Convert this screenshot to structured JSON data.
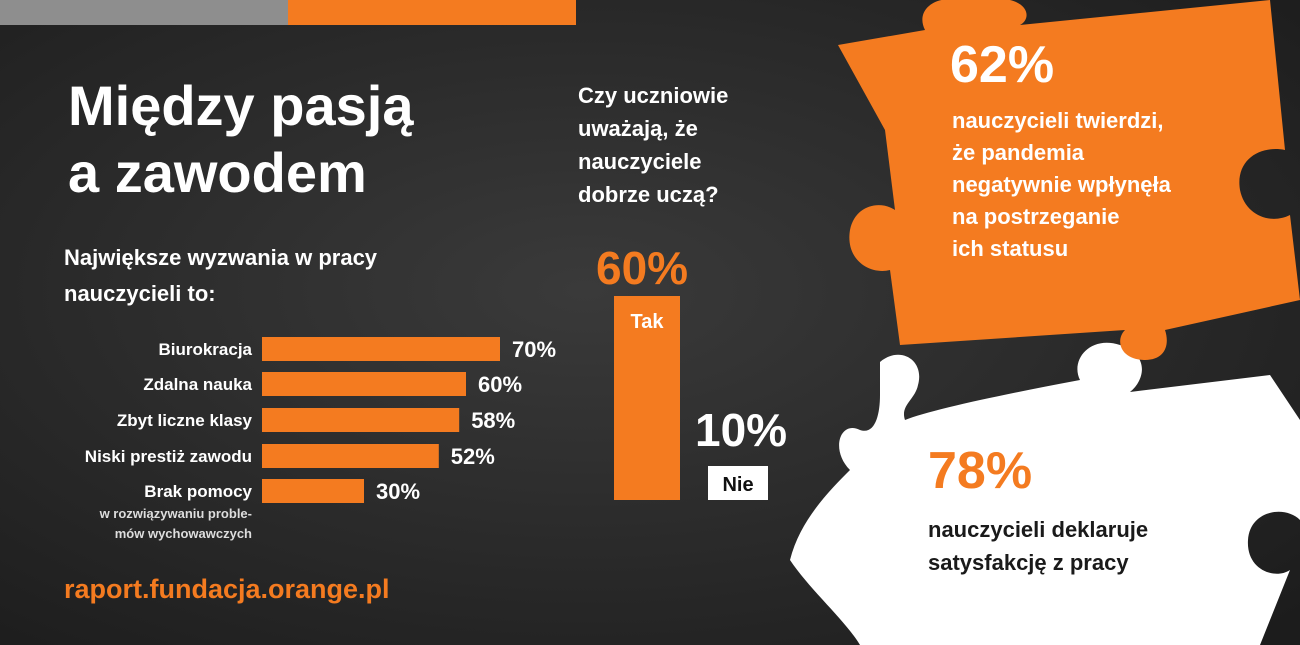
{
  "title": [
    "Między pasją",
    "a zawodem"
  ],
  "subtitle": [
    "Największe wyzwania w pracy",
    "nauczycieli to:"
  ],
  "chart_data": [
    {
      "type": "hbar",
      "categories": [
        "Biurokracja",
        "Zdalna nauka",
        "Zbyt liczne klasy",
        "Niski prestiż zawodu",
        "Brak pomocy"
      ],
      "category_note": [
        "w rozwiązywaniu proble-",
        "mów wychowawczych"
      ],
      "values": [
        70,
        60,
        58,
        52,
        30
      ],
      "value_labels": [
        "70%",
        "60%",
        "58%",
        "52%",
        "30%"
      ],
      "color": "#f47b20"
    },
    {
      "type": "bar",
      "title": [
        "Czy uczniowie",
        "uważają, że",
        "nauczyciele",
        "dobrze uczą?"
      ],
      "categories": [
        "Tak",
        "Nie"
      ],
      "values": [
        60,
        10
      ],
      "value_labels": [
        "60%",
        "10%"
      ],
      "colors": [
        "#f47b20",
        "#ffffff"
      ]
    }
  ],
  "url": "raport.fundacja.orange.pl",
  "puzzle_orange": {
    "stat": "62%",
    "text": [
      "nauczycieli twierdzi,",
      "że pandemia",
      "negatywnie wpłynęła",
      "na postrzeganie",
      "ich statusu"
    ]
  },
  "puzzle_white": {
    "stat": "78%",
    "text": [
      "nauczycieli deklaruje",
      "satysfakcję z pracy"
    ]
  }
}
